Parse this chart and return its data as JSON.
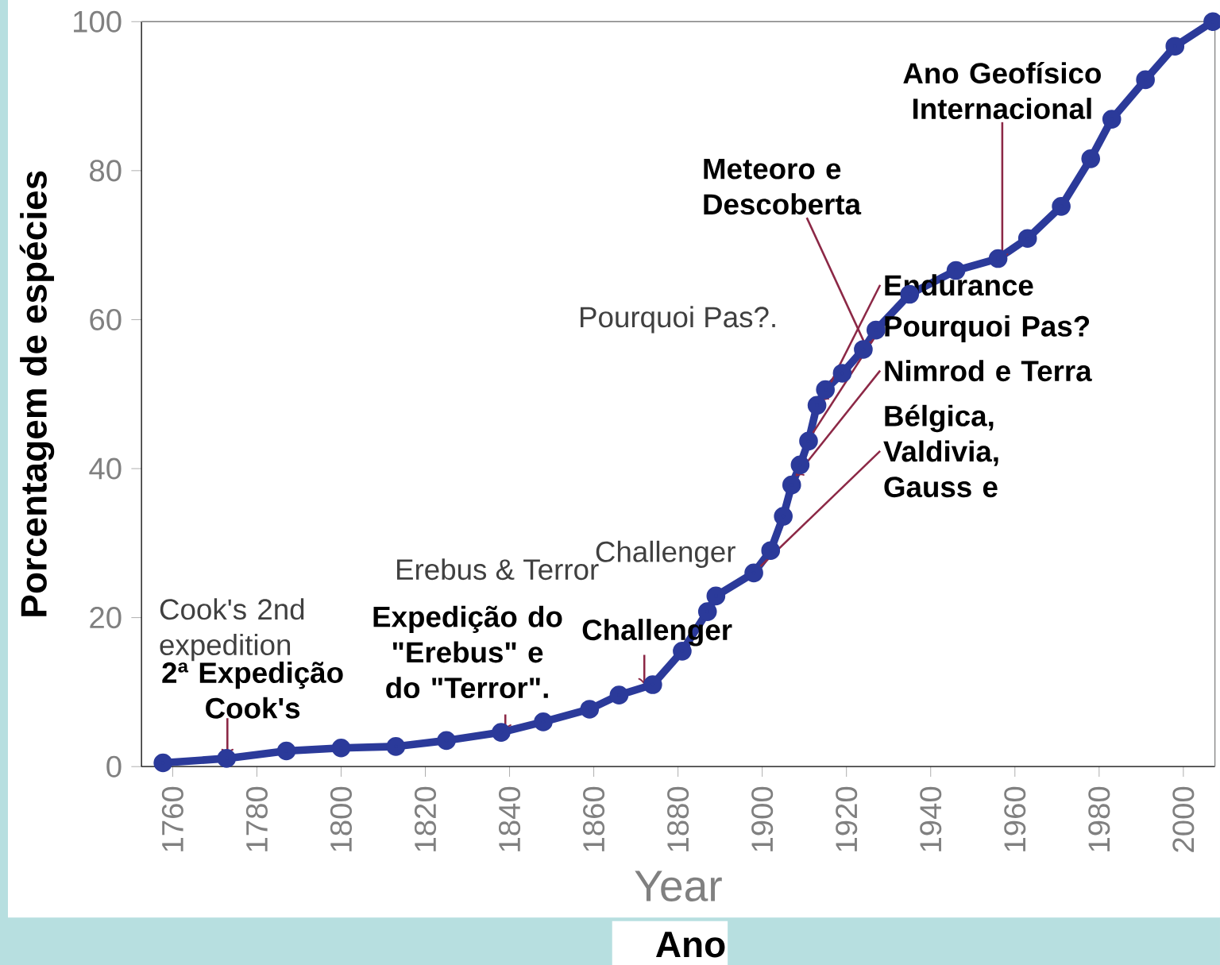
{
  "chart_data": {
    "type": "line",
    "xlabel": "Year",
    "ylabel": "Porcentagem de espécies",
    "x": [
      1757.7,
      1772.8,
      1787,
      1800,
      1813,
      1825,
      1838,
      1848,
      1859,
      1866,
      1874,
      1881,
      1887,
      1889,
      1898,
      1902,
      1905,
      1907,
      1909,
      1911,
      1913,
      1915,
      1919,
      1924,
      1927,
      1935,
      1946,
      1956,
      1963,
      1971,
      1978,
      1983,
      1991,
      1998,
      2007
    ],
    "series": [
      {
        "color": "#2b3a9a",
        "values": [
          0.5,
          1.1,
          2.1,
          2.5,
          2.7,
          3.5,
          4.6,
          6,
          7.7,
          9.6,
          11,
          15.5,
          20.8,
          22.9,
          26,
          29,
          33.6,
          37.8,
          40.5,
          43.7,
          48.5,
          50.6,
          52.8,
          56,
          58.6,
          63.4,
          66.6,
          68.2,
          70.9,
          75.2,
          81.6,
          86.9,
          92.2,
          96.7,
          100
        ]
      }
    ],
    "marker": "circle",
    "xlim": [
      1752.6,
      2007.5
    ],
    "ylim": [
      0,
      100
    ],
    "xticks": [
      1760,
      1780,
      1800,
      1820,
      1840,
      1860,
      1880,
      1900,
      1920,
      1940,
      1960,
      1980,
      2000
    ],
    "yticks": [
      0,
      20,
      40,
      60,
      80,
      100
    ],
    "annotations": [
      {
        "text": "2ª Expedição Cook's",
        "x": 1773,
        "y": 1.5
      },
      {
        "text": "Expedição do \"Erebus\" e do \"Terror\".",
        "x": 1839,
        "y": 4.8
      },
      {
        "text": "Challenger",
        "x": 1872,
        "y": 11
      },
      {
        "text": "Bélgica, Valdivia, Gauss e",
        "x": 1898,
        "y": 26
      },
      {
        "text": "Nimrod e Terra",
        "x": 1908,
        "y": 39
      },
      {
        "text": "Pourquoi Pas?",
        "x": 1910,
        "y": 43
      },
      {
        "text": "Endurance",
        "x": 1914,
        "y": 49
      },
      {
        "text": "Meteoro e Descoberta",
        "x": 1925,
        "y": 56
      },
      {
        "text": "Ano Geofísico Internacional",
        "x": 1957,
        "y": 68
      },
      "Cook's 2nd expedition",
      "Erebus & Terror",
      "Challenger",
      "Pourquoi Pas?.",
      "Ano"
    ]
  }
}
